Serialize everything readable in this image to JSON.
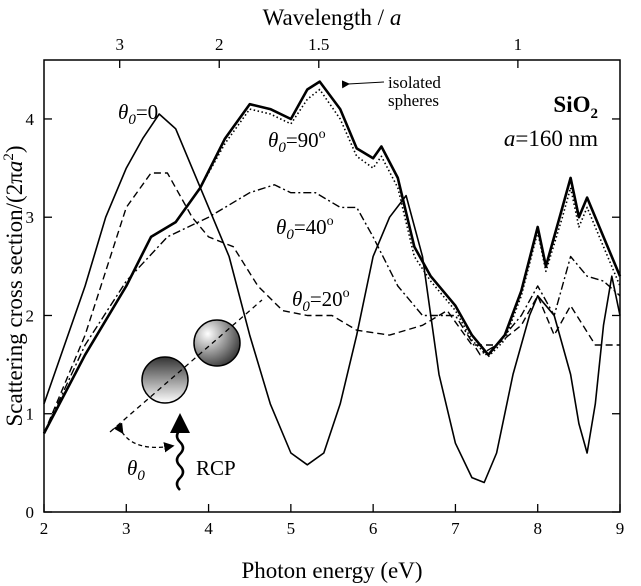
{
  "chart_data": {
    "type": "line",
    "xlabel": "Photon energy (eV)",
    "x2label": {
      "text": "Wavelength / ",
      "var": "a"
    },
    "ylabel": {
      "text": "Scattering cross section/(2π",
      "var": "a",
      "sup": "2",
      "end": ")"
    },
    "xlim": [
      2,
      9
    ],
    "xticks": [
      2,
      3,
      4,
      5,
      6,
      7,
      8,
      9
    ],
    "x2lim": [
      4.84,
      0.854
    ],
    "x2scale": "reciprocal",
    "x2ticks": [
      3,
      2,
      1.5,
      1
    ],
    "ylim": [
      0,
      4.6
    ],
    "yticks": [
      0,
      1,
      2,
      3,
      4
    ],
    "material": {
      "base": "SiO",
      "sub": "2"
    },
    "lattice": {
      "var": "a",
      "text": "=160 nm"
    },
    "inset": {
      "angle": {
        "symbol": "θ",
        "sub": "0"
      },
      "polarization": "RCP"
    },
    "series": [
      {
        "label": {
          "symbol": "θ",
          "sub": "0",
          "eq": "=0"
        },
        "color": "#000",
        "width": 1.6,
        "dash": "none",
        "x": [
          2,
          2.5,
          2.75,
          3.0,
          3.2,
          3.4,
          3.6,
          3.8,
          4.0,
          4.25,
          4.5,
          4.75,
          5.0,
          5.2,
          5.4,
          5.6,
          5.8,
          6.0,
          6.2,
          6.4,
          6.6,
          6.8,
          7.0,
          7.2,
          7.35,
          7.5,
          7.7,
          7.9,
          8.0,
          8.2,
          8.4,
          8.5,
          8.6,
          8.7,
          8.8,
          8.9,
          9.0
        ],
        "values": [
          1.1,
          2.3,
          3.0,
          3.5,
          3.8,
          4.05,
          3.9,
          3.5,
          3.1,
          2.6,
          1.8,
          1.1,
          0.6,
          0.48,
          0.6,
          1.1,
          1.8,
          2.6,
          3.0,
          3.22,
          2.6,
          1.4,
          0.7,
          0.35,
          0.3,
          0.6,
          1.4,
          2.0,
          2.2,
          2.0,
          1.4,
          0.9,
          0.6,
          1.1,
          1.9,
          2.4,
          2.0
        ]
      },
      {
        "label": {
          "symbol": "θ",
          "sub": "0",
          "eq": "=90",
          "sup": "o"
        },
        "color": "#000",
        "width": 2.6,
        "dash": "none",
        "x": [
          2,
          2.5,
          3.0,
          3.3,
          3.6,
          3.9,
          4.2,
          4.5,
          4.75,
          5.0,
          5.2,
          5.35,
          5.6,
          5.8,
          6.0,
          6.1,
          6.3,
          6.5,
          6.7,
          7.0,
          7.2,
          7.4,
          7.6,
          7.8,
          8.0,
          8.1,
          8.3,
          8.4,
          8.5,
          8.6,
          8.8,
          9.0
        ],
        "values": [
          0.8,
          1.6,
          2.3,
          2.8,
          2.95,
          3.3,
          3.8,
          4.15,
          4.1,
          4.0,
          4.3,
          4.38,
          4.1,
          3.7,
          3.6,
          3.72,
          3.4,
          2.7,
          2.4,
          2.1,
          1.8,
          1.6,
          1.8,
          2.25,
          2.9,
          2.5,
          3.1,
          3.4,
          3.0,
          3.2,
          2.8,
          2.4
        ]
      },
      {
        "label": {
          "lines": [
            "isolated",
            "spheres"
          ]
        },
        "color": "#000",
        "width": 1.6,
        "dash": "1.5,2.5",
        "x": [
          2,
          2.5,
          3.0,
          3.3,
          3.6,
          3.9,
          4.2,
          4.5,
          4.75,
          5.0,
          5.2,
          5.35,
          5.6,
          5.8,
          6.0,
          6.1,
          6.3,
          6.5,
          6.7,
          7.0,
          7.2,
          7.4,
          7.6,
          7.8,
          8.0,
          8.1,
          8.3,
          8.4,
          8.5,
          8.6,
          8.8,
          9.0
        ],
        "values": [
          0.8,
          1.6,
          2.3,
          2.8,
          2.95,
          3.3,
          3.75,
          4.1,
          4.05,
          3.95,
          4.2,
          4.3,
          4.0,
          3.62,
          3.5,
          3.62,
          3.3,
          2.6,
          2.35,
          2.05,
          1.75,
          1.58,
          1.75,
          2.2,
          2.85,
          2.45,
          3.0,
          3.3,
          2.9,
          3.1,
          2.7,
          2.3
        ]
      },
      {
        "label": {
          "symbol": "θ",
          "sub": "0",
          "eq": "=40",
          "sup": "o"
        },
        "color": "#000",
        "width": 1.4,
        "dash": "8,3,2,3",
        "x": [
          2,
          2.5,
          3.0,
          3.5,
          4.0,
          4.5,
          4.8,
          5.0,
          5.3,
          5.6,
          5.8,
          6.0,
          6.3,
          6.6,
          7.0,
          7.3,
          7.5,
          7.8,
          8.0,
          8.2,
          8.4,
          8.6,
          8.8,
          9.0
        ],
        "values": [
          0.8,
          1.7,
          2.35,
          2.8,
          3.0,
          3.25,
          3.33,
          3.25,
          3.25,
          3.1,
          3.1,
          2.8,
          2.3,
          2.0,
          2.0,
          1.6,
          1.7,
          2.0,
          2.3,
          2.0,
          2.6,
          2.4,
          2.35,
          2.2
        ]
      },
      {
        "label": {
          "symbol": "θ",
          "sub": "0",
          "eq": "=20",
          "sup": "o"
        },
        "color": "#000",
        "width": 1.4,
        "dash": "7,4",
        "x": [
          2,
          2.5,
          3.0,
          3.3,
          3.5,
          3.8,
          4.0,
          4.3,
          4.6,
          4.9,
          5.2,
          5.5,
          5.8,
          6.2,
          6.6,
          6.9,
          7.2,
          7.5,
          7.8,
          8.0,
          8.2,
          8.4,
          8.7,
          9.0
        ],
        "values": [
          0.8,
          1.8,
          3.1,
          3.45,
          3.45,
          3.0,
          2.8,
          2.7,
          2.3,
          2.05,
          2.0,
          2.0,
          1.85,
          1.8,
          1.9,
          2.05,
          1.7,
          1.7,
          1.9,
          2.2,
          1.8,
          2.1,
          1.7,
          1.7
        ]
      }
    ]
  }
}
